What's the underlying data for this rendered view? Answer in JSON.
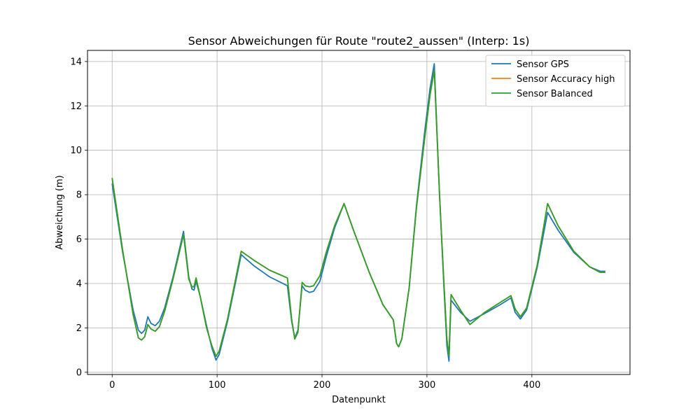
{
  "chart_data": {
    "type": "line",
    "title": "Sensor Abweichungen für Route \"route2_aussen\" (Interp: 1s)",
    "xlabel": "Datenpunkt",
    "ylabel": "Abweichung (m)",
    "xlim": [
      -23.5,
      493.5
    ],
    "ylim": [
      -0.1,
      14.5
    ],
    "xticks": [
      0,
      100,
      200,
      300,
      400
    ],
    "yticks": [
      0,
      2,
      4,
      6,
      8,
      10,
      12,
      14
    ],
    "grid": true,
    "legend_position": "top-right",
    "series": [
      {
        "name": "Sensor GPS",
        "color": "#1f77b4",
        "points": [
          [
            0,
            8.5
          ],
          [
            10,
            5.4
          ],
          [
            20,
            2.8
          ],
          [
            25,
            1.9
          ],
          [
            28,
            1.75
          ],
          [
            31,
            1.9
          ],
          [
            34,
            2.5
          ],
          [
            37,
            2.2
          ],
          [
            41,
            2.1
          ],
          [
            45,
            2.3
          ],
          [
            50,
            2.9
          ],
          [
            58,
            4.3
          ],
          [
            68,
            6.35
          ],
          [
            73,
            4.3
          ],
          [
            76,
            3.75
          ],
          [
            78,
            3.7
          ],
          [
            80,
            4.1
          ],
          [
            84,
            3.4
          ],
          [
            90,
            2.1
          ],
          [
            95,
            1.1
          ],
          [
            99,
            0.55
          ],
          [
            102,
            0.8
          ],
          [
            110,
            2.3
          ],
          [
            123,
            5.3
          ],
          [
            135,
            4.8
          ],
          [
            150,
            4.3
          ],
          [
            167,
            3.9
          ],
          [
            171,
            2.3
          ],
          [
            174,
            1.55
          ],
          [
            177,
            1.9
          ],
          [
            181,
            3.9
          ],
          [
            184,
            3.7
          ],
          [
            188,
            3.6
          ],
          [
            192,
            3.65
          ],
          [
            198,
            4.1
          ],
          [
            204,
            5.2
          ],
          [
            212,
            6.5
          ],
          [
            221,
            7.6
          ],
          [
            230,
            6.4
          ],
          [
            245,
            4.5
          ],
          [
            258,
            3.05
          ],
          [
            268,
            2.35
          ],
          [
            271,
            1.3
          ],
          [
            273,
            1.15
          ],
          [
            276,
            1.5
          ],
          [
            283,
            3.8
          ],
          [
            290,
            7.5
          ],
          [
            298,
            10.9
          ],
          [
            303,
            12.8
          ],
          [
            307,
            13.9
          ],
          [
            312,
            8.0
          ],
          [
            316,
            4.0
          ],
          [
            319,
            1.2
          ],
          [
            321,
            0.5
          ],
          [
            323,
            3.25
          ],
          [
            332,
            2.7
          ],
          [
            341,
            2.3
          ],
          [
            355,
            2.65
          ],
          [
            370,
            3.05
          ],
          [
            380,
            3.35
          ],
          [
            384,
            2.7
          ],
          [
            389,
            2.4
          ],
          [
            395,
            2.8
          ],
          [
            405,
            4.7
          ],
          [
            415,
            7.2
          ],
          [
            425,
            6.4
          ],
          [
            440,
            5.4
          ],
          [
            455,
            4.75
          ],
          [
            465,
            4.55
          ],
          [
            470,
            4.55
          ]
        ]
      },
      {
        "name": "Sensor Accuracy high",
        "color": "#ff7f0e",
        "points": [
          [
            0,
            8.75
          ],
          [
            10,
            5.5
          ],
          [
            20,
            2.6
          ],
          [
            25,
            1.55
          ],
          [
            28,
            1.45
          ],
          [
            31,
            1.6
          ],
          [
            34,
            2.15
          ],
          [
            37,
            1.95
          ],
          [
            41,
            1.85
          ],
          [
            45,
            2.05
          ],
          [
            50,
            2.75
          ],
          [
            58,
            4.2
          ],
          [
            68,
            6.2
          ],
          [
            73,
            4.2
          ],
          [
            76,
            3.85
          ],
          [
            78,
            3.85
          ],
          [
            80,
            4.25
          ],
          [
            84,
            3.4
          ],
          [
            90,
            2.0
          ],
          [
            95,
            1.2
          ],
          [
            99,
            0.72
          ],
          [
            102,
            0.95
          ],
          [
            110,
            2.4
          ],
          [
            123,
            5.45
          ],
          [
            135,
            5.05
          ],
          [
            150,
            4.6
          ],
          [
            167,
            4.25
          ],
          [
            171,
            2.4
          ],
          [
            174,
            1.5
          ],
          [
            177,
            1.8
          ],
          [
            181,
            4.05
          ],
          [
            184,
            3.9
          ],
          [
            188,
            3.85
          ],
          [
            192,
            3.9
          ],
          [
            198,
            4.35
          ],
          [
            204,
            5.4
          ],
          [
            212,
            6.6
          ],
          [
            221,
            7.6
          ],
          [
            230,
            6.4
          ],
          [
            245,
            4.5
          ],
          [
            258,
            3.05
          ],
          [
            268,
            2.35
          ],
          [
            271,
            1.3
          ],
          [
            273,
            1.15
          ],
          [
            276,
            1.5
          ],
          [
            283,
            3.8
          ],
          [
            290,
            7.4
          ],
          [
            298,
            10.6
          ],
          [
            303,
            12.5
          ],
          [
            307,
            13.6
          ],
          [
            312,
            8.0
          ],
          [
            316,
            4.2
          ],
          [
            319,
            1.5
          ],
          [
            321,
            0.75
          ],
          [
            323,
            3.5
          ],
          [
            332,
            2.8
          ],
          [
            341,
            2.15
          ],
          [
            355,
            2.7
          ],
          [
            370,
            3.15
          ],
          [
            380,
            3.45
          ],
          [
            384,
            2.85
          ],
          [
            389,
            2.5
          ],
          [
            395,
            2.9
          ],
          [
            405,
            4.8
          ],
          [
            415,
            7.6
          ],
          [
            425,
            6.6
          ],
          [
            440,
            5.45
          ],
          [
            455,
            4.75
          ],
          [
            465,
            4.5
          ],
          [
            470,
            4.5
          ]
        ]
      },
      {
        "name": "Sensor Balanced",
        "color": "#2ca02c",
        "points": [
          [
            0,
            8.75
          ],
          [
            10,
            5.5
          ],
          [
            20,
            2.6
          ],
          [
            25,
            1.55
          ],
          [
            28,
            1.45
          ],
          [
            31,
            1.6
          ],
          [
            34,
            2.15
          ],
          [
            37,
            1.95
          ],
          [
            41,
            1.85
          ],
          [
            45,
            2.05
          ],
          [
            50,
            2.75
          ],
          [
            58,
            4.2
          ],
          [
            68,
            6.2
          ],
          [
            73,
            4.2
          ],
          [
            76,
            3.85
          ],
          [
            78,
            3.85
          ],
          [
            80,
            4.25
          ],
          [
            84,
            3.4
          ],
          [
            90,
            2.0
          ],
          [
            95,
            1.2
          ],
          [
            99,
            0.72
          ],
          [
            102,
            0.95
          ],
          [
            110,
            2.4
          ],
          [
            123,
            5.45
          ],
          [
            135,
            5.05
          ],
          [
            150,
            4.6
          ],
          [
            167,
            4.25
          ],
          [
            171,
            2.4
          ],
          [
            174,
            1.5
          ],
          [
            177,
            1.8
          ],
          [
            181,
            4.05
          ],
          [
            184,
            3.9
          ],
          [
            188,
            3.85
          ],
          [
            192,
            3.9
          ],
          [
            198,
            4.35
          ],
          [
            204,
            5.4
          ],
          [
            212,
            6.6
          ],
          [
            221,
            7.6
          ],
          [
            230,
            6.4
          ],
          [
            245,
            4.5
          ],
          [
            258,
            3.05
          ],
          [
            268,
            2.35
          ],
          [
            271,
            1.3
          ],
          [
            273,
            1.15
          ],
          [
            276,
            1.5
          ],
          [
            283,
            3.8
          ],
          [
            290,
            7.4
          ],
          [
            298,
            10.6
          ],
          [
            303,
            12.5
          ],
          [
            307,
            13.6
          ],
          [
            312,
            8.0
          ],
          [
            316,
            4.2
          ],
          [
            319,
            1.5
          ],
          [
            321,
            0.75
          ],
          [
            323,
            3.5
          ],
          [
            332,
            2.8
          ],
          [
            341,
            2.15
          ],
          [
            355,
            2.7
          ],
          [
            370,
            3.15
          ],
          [
            380,
            3.45
          ],
          [
            384,
            2.85
          ],
          [
            389,
            2.5
          ],
          [
            395,
            2.9
          ],
          [
            405,
            4.8
          ],
          [
            415,
            7.6
          ],
          [
            425,
            6.6
          ],
          [
            440,
            5.45
          ],
          [
            455,
            4.75
          ],
          [
            465,
            4.5
          ],
          [
            470,
            4.5
          ]
        ]
      }
    ]
  }
}
